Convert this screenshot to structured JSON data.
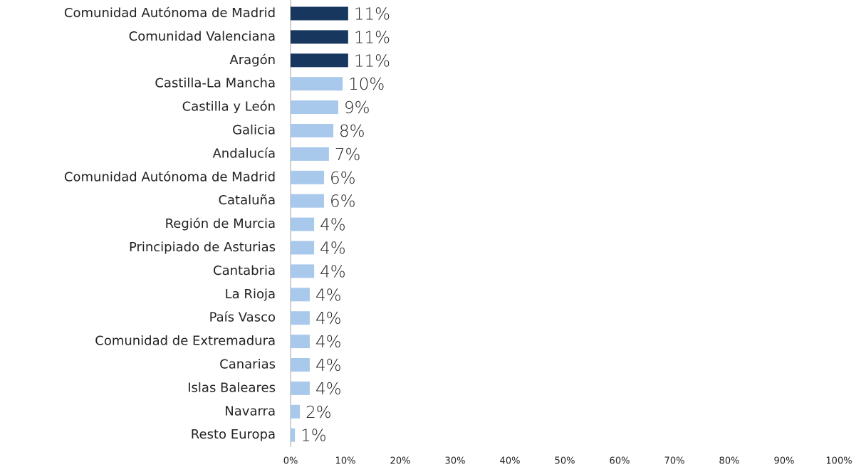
{
  "chart_data": {
    "type": "bar",
    "orientation": "horizontal",
    "categories": [
      "Comunidad Autónoma de Madrid",
      "Comunidad Valenciana",
      "Aragón",
      "Castilla-La Mancha",
      "Castilla y León",
      "Galicia",
      "Andalucía",
      "Comunidad Autónoma de Madrid",
      "Cataluña",
      "Región de Murcia",
      "Principiado de Asturias",
      "Cantabria",
      "La Rioja",
      "País Vasco",
      "Comunidad de Extremadura",
      "Canarias",
      "Islas Baleares",
      "Navarra",
      "Resto Europa"
    ],
    "values": [
      10.5,
      10.5,
      10.5,
      9.5,
      8.7,
      7.8,
      7.0,
      6.1,
      6.1,
      4.3,
      4.3,
      4.3,
      3.5,
      3.5,
      3.5,
      3.5,
      3.5,
      1.7,
      0.8
    ],
    "value_labels": [
      "11%",
      "11%",
      "11%",
      "10%",
      "9%",
      "8%",
      "7%",
      "6%",
      "6%",
      "4%",
      "4%",
      "4%",
      "4%",
      "4%",
      "4%",
      "4%",
      "4%",
      "2%",
      "1%"
    ],
    "colors": [
      "#17375e",
      "#17375e",
      "#17375e",
      "#a9c9ec",
      "#a9c9ec",
      "#a9c9ec",
      "#a9c9ec",
      "#a9c9ec",
      "#a9c9ec",
      "#a9c9ec",
      "#a9c9ec",
      "#a9c9ec",
      "#a9c9ec",
      "#a9c9ec",
      "#a9c9ec",
      "#a9c9ec",
      "#a9c9ec",
      "#a9c9ec",
      "#a9c9ec"
    ],
    "xlim": [
      0,
      100
    ],
    "xticks": [
      {
        "value": 0,
        "label": "0%"
      },
      {
        "value": 10,
        "label": "10%"
      },
      {
        "value": 20,
        "label": "20%"
      },
      {
        "value": 30,
        "label": "30%"
      },
      {
        "value": 40,
        "label": "40%"
      },
      {
        "value": 50,
        "label": "50%"
      },
      {
        "value": 60,
        "label": "60%"
      },
      {
        "value": 70,
        "label": "70%"
      },
      {
        "value": 80,
        "label": "80%"
      },
      {
        "value": 90,
        "label": "90%"
      },
      {
        "value": 100,
        "label": "100%"
      }
    ]
  }
}
